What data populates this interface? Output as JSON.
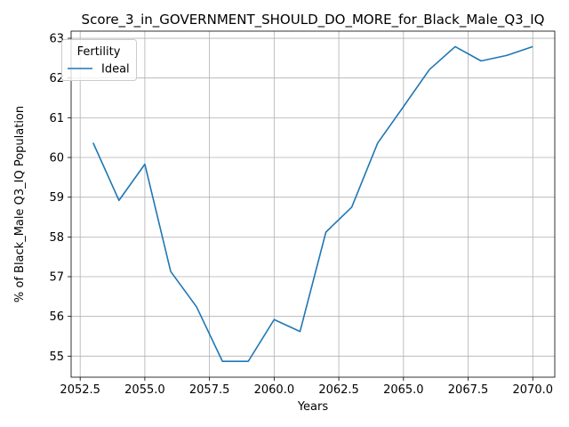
{
  "chart_data": {
    "type": "line",
    "title": "Score_3_in_GOVERNMENT_SHOULD_DO_MORE_for_Black_Male_Q3_IQ",
    "xlabel": "Years",
    "ylabel": "% of Black_Male Q3_IQ Population",
    "xlim": [
      2052.15,
      2070.85
    ],
    "ylim": [
      54.47,
      63.18
    ],
    "xticks": [
      2052.5,
      2055.0,
      2057.5,
      2060.0,
      2062.5,
      2065.0,
      2067.5,
      2070.0
    ],
    "xtick_labels": [
      "2052.5",
      "2055.0",
      "2057.5",
      "2060.0",
      "2062.5",
      "2065.0",
      "2067.5",
      "2070.0"
    ],
    "yticks": [
      55,
      56,
      57,
      58,
      59,
      60,
      61,
      62,
      63
    ],
    "ytick_labels": [
      "55",
      "56",
      "57",
      "58",
      "59",
      "60",
      "61",
      "62",
      "63"
    ],
    "grid": true,
    "legend": {
      "title": "Fertility",
      "position": "upper left"
    },
    "series": [
      {
        "name": "Ideal",
        "color": "#1f77b4",
        "x": [
          2053,
          2054,
          2055,
          2056,
          2057,
          2058,
          2059,
          2060,
          2061,
          2062,
          2063,
          2064,
          2065,
          2066,
          2067,
          2068,
          2069,
          2070
        ],
        "y": [
          60.37,
          58.92,
          59.83,
          57.13,
          56.24,
          54.87,
          54.87,
          55.92,
          55.62,
          58.12,
          58.75,
          60.36,
          61.28,
          62.21,
          62.79,
          62.43,
          62.57,
          62.79
        ]
      }
    ]
  }
}
